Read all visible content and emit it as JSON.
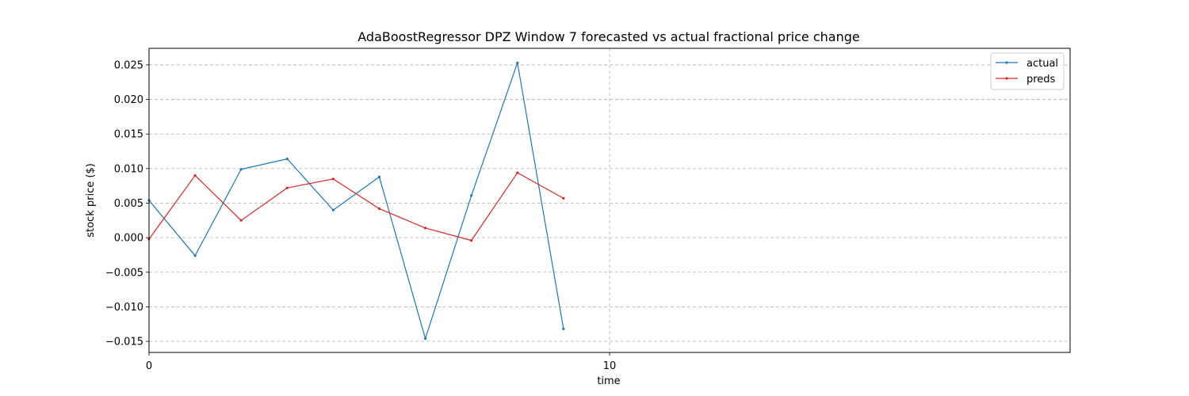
{
  "chart_data": {
    "type": "line",
    "title": "AdaBoostRegressor DPZ Window 7 forecasted vs actual fractional price change",
    "xlabel": "time",
    "ylabel": "stock price ($)",
    "xlim": [
      0,
      20
    ],
    "ylim": [
      -0.0166,
      0.0274
    ],
    "x_ticks": [
      0,
      10
    ],
    "y_ticks": [
      -0.015,
      -0.01,
      -0.005,
      0.0,
      0.005,
      0.01,
      0.015,
      0.02,
      0.025
    ],
    "y_tick_labels": [
      "−0.015",
      "−0.010",
      "−0.005",
      "0.000",
      "0.005",
      "0.010",
      "0.015",
      "0.020",
      "0.025"
    ],
    "grid": true,
    "legend_position": "top-right",
    "x": [
      0,
      1,
      2,
      3,
      4,
      5,
      6,
      7,
      8,
      9
    ],
    "series": [
      {
        "name": "actual",
        "color": "#1f77b4",
        "values": [
          0.0054,
          -0.0026,
          0.0099,
          0.0114,
          0.004,
          0.0088,
          -0.0146,
          0.0061,
          0.0253,
          -0.0132
        ]
      },
      {
        "name": "preds",
        "color": "#d62728",
        "values": [
          -0.0002,
          0.009,
          0.0025,
          0.0072,
          0.0085,
          0.0042,
          0.0014,
          -0.0004,
          0.0094,
          0.0057
        ]
      }
    ]
  }
}
